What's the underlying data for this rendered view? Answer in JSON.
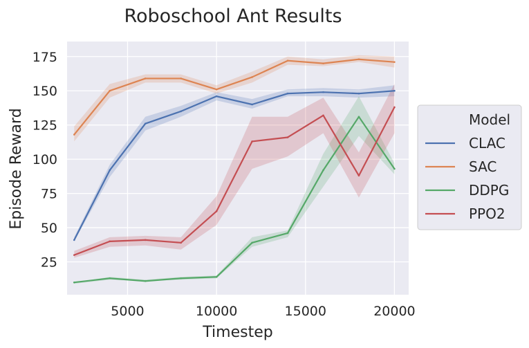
{
  "chart_data": {
    "type": "line",
    "title": "Roboschool Ant Results",
    "xlabel": "Timestep",
    "ylabel": "Episode Reward",
    "x": [
      2000,
      4000,
      6000,
      8000,
      10000,
      12000,
      14000,
      16000,
      18000,
      20000
    ],
    "xlim": [
      1600,
      20800
    ],
    "ylim": [
      1,
      186
    ],
    "xticks": [
      5000,
      10000,
      15000,
      20000
    ],
    "yticks": [
      25,
      50,
      75,
      100,
      125,
      150,
      175
    ],
    "grid": true,
    "legend": {
      "title": "Model",
      "placement": "outside-right"
    },
    "series": [
      {
        "name": "CLAC",
        "color": "#4c72b0",
        "values": [
          41,
          92,
          126,
          135,
          146,
          140,
          148,
          149,
          148,
          150
        ],
        "lower": [
          40,
          87,
          121,
          131,
          143,
          137,
          146,
          146,
          145,
          146
        ],
        "upper": [
          43,
          96,
          131,
          139,
          149,
          144,
          151,
          152,
          151,
          154
        ]
      },
      {
        "name": "SAC",
        "color": "#dd8452",
        "values": [
          118,
          150,
          159,
          159,
          151,
          160,
          172,
          170,
          173,
          171
        ],
        "lower": [
          113,
          145,
          156,
          156,
          148,
          156,
          169,
          168,
          171,
          167
        ],
        "upper": [
          124,
          155,
          162,
          162,
          154,
          164,
          175,
          173,
          176,
          175
        ]
      },
      {
        "name": "DDPG",
        "color": "#55a868",
        "values": [
          10,
          13,
          11,
          13,
          14,
          39,
          46,
          92,
          131,
          93
        ],
        "lower": [
          9,
          12,
          11,
          12,
          13,
          36,
          43,
          80,
          117,
          89
        ],
        "upper": [
          10,
          14,
          12,
          14,
          15,
          43,
          48,
          104,
          146,
          97
        ]
      },
      {
        "name": "PPO2",
        "color": "#c44e52",
        "values": [
          30,
          40,
          41,
          39,
          62,
          113,
          116,
          132,
          88,
          138
        ],
        "lower": [
          28,
          36,
          37,
          34,
          52,
          93,
          102,
          119,
          72,
          119
        ],
        "upper": [
          33,
          43,
          44,
          43,
          73,
          131,
          131,
          145,
          105,
          155
        ]
      }
    ]
  }
}
